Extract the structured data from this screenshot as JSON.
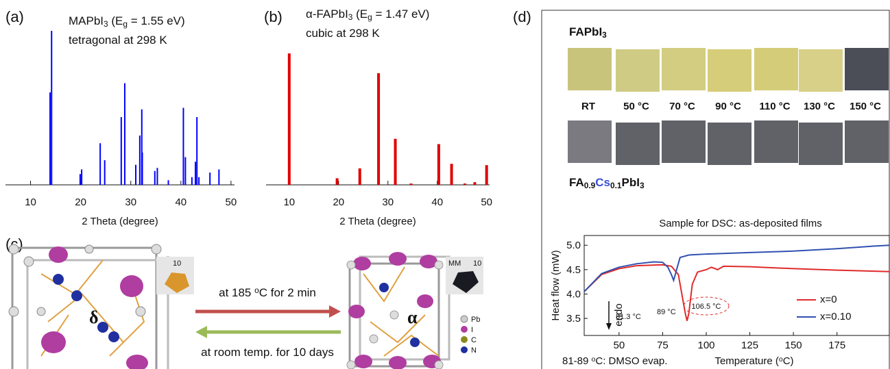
{
  "chart_data": [
    {
      "type": "stick",
      "label": "(a)",
      "title": [
        "MAPbI",
        "3",
        " (E",
        "g",
        " = 1.55 eV)"
      ],
      "subtitle": "tetragonal at 298 K",
      "x": [
        13.9,
        14.2,
        19.9,
        20.2,
        23.9,
        24.8,
        28.1,
        28.8,
        31.0,
        31.8,
        32.2,
        32.3,
        34.8,
        35.3,
        37.5,
        40.5,
        40.9,
        42.2,
        42.9,
        43.2,
        43.6,
        45.8,
        47.6
      ],
      "values": [
        60,
        100,
        7,
        10,
        27,
        16,
        44,
        66,
        13,
        32,
        49,
        21,
        9,
        11,
        3,
        50,
        18,
        5,
        15,
        44,
        5,
        8,
        10
      ],
      "color": "#0000ff",
      "xlim": [
        5,
        50.7
      ],
      "ylim": [
        0,
        100
      ],
      "xticks": [
        10,
        20,
        30,
        40,
        50
      ],
      "xlabel": "2 Theta (degree)"
    },
    {
      "type": "stick",
      "label": "(b)",
      "title": [
        "α-FAPbI",
        "3",
        " (E",
        "g",
        " = 1.47 eV)"
      ],
      "subtitle": "cubic at 298 K",
      "x": [
        10.0,
        19.7,
        24.3,
        28.1,
        31.5,
        34.7,
        40.3,
        42.9,
        45.6,
        47.6,
        50.0
      ],
      "values": [
        100,
        5,
        12.5,
        85,
        35,
        1,
        31,
        16,
        1,
        2,
        15
      ],
      "color": "#e00000",
      "xlim": [
        5.3,
        50.6
      ],
      "ylim": [
        0,
        117.2
      ],
      "xticks": [
        10,
        20,
        30,
        40,
        50
      ],
      "xlabel": "2 Theta (degree)"
    },
    {
      "type": "line",
      "title": "Sample for DSC: as-deposited films",
      "xlim": [
        30,
        205
      ],
      "ylim": [
        3.15,
        5.2
      ],
      "xticks": [
        50,
        75,
        100,
        125,
        150,
        175
      ],
      "yticks": [
        3.5,
        {
          "value": 4,
          "label": "4.0"
        },
        4.5,
        {
          "value": 5,
          "label": "5.0"
        }
      ],
      "xlabel": [
        "Temperature (",
        "o",
        "C)"
      ],
      "ylabel": "Heat flow (mW)",
      "series": [
        {
          "name": "x=0",
          "color": "#e02a2a",
          "x": [
            30,
            40,
            50,
            60,
            75,
            80,
            84,
            86,
            88,
            89,
            90,
            92,
            95,
            100,
            103,
            106.5,
            110,
            125,
            150,
            175,
            205
          ],
          "values": [
            4.05,
            4.4,
            4.52,
            4.58,
            4.6,
            4.57,
            4.4,
            4.0,
            3.6,
            3.45,
            3.6,
            4.2,
            4.45,
            4.5,
            4.55,
            4.5,
            4.57,
            4.56,
            4.52,
            4.49,
            4.46
          ]
        },
        {
          "name": "x=0.10",
          "color": "#3050b0",
          "x": [
            30,
            40,
            50,
            60,
            70,
            75,
            78,
            80,
            81.3,
            83,
            85,
            90,
            100,
            125,
            150,
            175,
            195,
            205
          ],
          "values": [
            4.05,
            4.42,
            4.55,
            4.62,
            4.66,
            4.65,
            4.55,
            4.4,
            4.28,
            4.5,
            4.75,
            4.8,
            4.82,
            4.85,
            4.88,
            4.93,
            4.98,
            5.0
          ]
        }
      ],
      "annotations": [
        "81.3 °C",
        "89 °C",
        "106.5 °C",
        "endo"
      ],
      "note": [
        "81-89 ",
        "o",
        "C: DMSO evap."
      ]
    }
  ],
  "panel_c": {
    "label": "(c)",
    "phase_left": "δ",
    "phase_right": "α",
    "forward": [
      "at 185 ",
      "o",
      "C for 2 min"
    ],
    "backward": "at room temp. for 10 days",
    "legend": [
      "Pb",
      "I",
      "C",
      "N"
    ],
    "ruler_left": "10",
    "ruler_right": [
      "MM",
      "10"
    ]
  },
  "panel_d": {
    "label": "(d)",
    "top_title": [
      "FAPbI",
      "3"
    ],
    "temperatures": [
      "RT",
      "50 °C",
      "70 °C",
      "90 °C",
      "110 °C",
      "130 °C",
      "150 °C"
    ],
    "bottom_title": [
      "FA",
      "0.9",
      "Cs",
      "0.1",
      "PbI",
      "3"
    ]
  }
}
